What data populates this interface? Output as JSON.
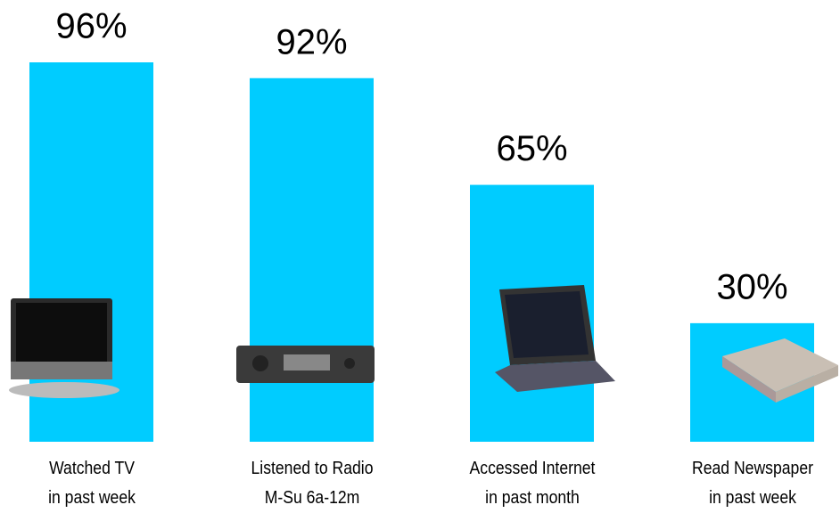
{
  "chart_data": {
    "type": "bar",
    "categories": [
      "Watched TV\nin past week",
      "Listened to Radio\nM-Su 6a-12m",
      "Accessed Internet\nin past month",
      "Read Newspaper\nin past week"
    ],
    "values": [
      96,
      92,
      65,
      30
    ],
    "value_labels": [
      "96%",
      "92%",
      "65%",
      "30%"
    ],
    "color": "#00ccff",
    "ylim": [
      0,
      100
    ]
  }
}
